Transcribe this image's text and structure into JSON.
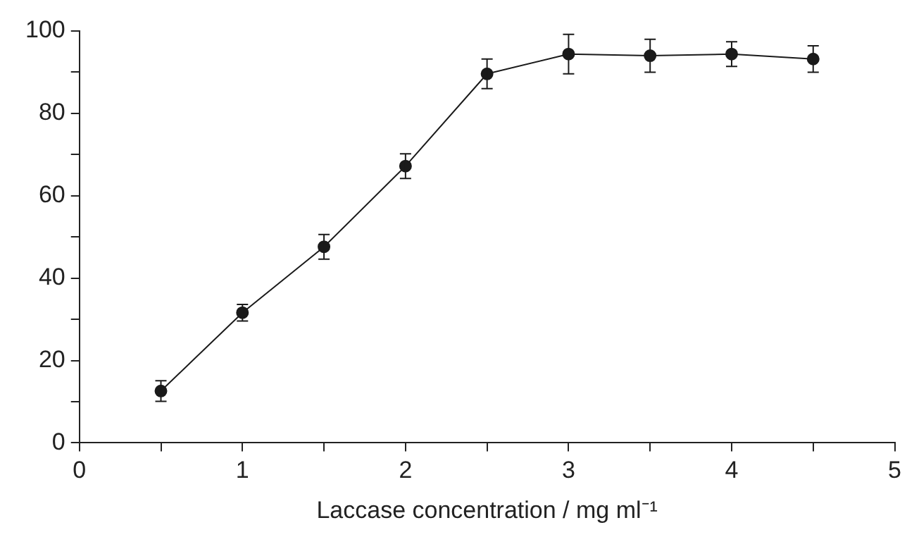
{
  "chart_data": {
    "type": "line",
    "xlabel": "Laccase concentration / mg ml⁻¹",
    "x": [
      0.5,
      1,
      1.5,
      2,
      2.5,
      3,
      3.5,
      4,
      4.5
    ],
    "series": [
      {
        "color": "#1a1a1a",
        "values": [
          12.6,
          31.6,
          47.6,
          67.2,
          89.6,
          94.4,
          94,
          94.4,
          93.2
        ],
        "errors": [
          2.5,
          2,
          3,
          3,
          3.6,
          4.8,
          4,
          3,
          3.2
        ]
      }
    ],
    "xlim": [
      0,
      5
    ],
    "xticks": [
      0,
      {
        "value": 0.5,
        "label": null
      },
      1,
      {
        "value": 1.5,
        "label": null
      },
      2,
      {
        "value": 2.5,
        "label": null
      },
      3,
      {
        "value": 3.5,
        "label": null
      },
      4,
      {
        "value": 4.5,
        "label": null
      },
      5
    ],
    "ylim": [
      0,
      100
    ],
    "yticks": [
      0,
      {
        "value": 10,
        "label": null
      },
      20,
      {
        "value": 30,
        "label": null
      },
      40,
      {
        "value": 50,
        "label": null
      },
      60,
      {
        "value": 70,
        "label": null
      },
      80,
      {
        "value": 90,
        "label": null
      },
      100
    ],
    "grid": false,
    "legend": false,
    "marker": "circle",
    "line_style": "solid"
  }
}
